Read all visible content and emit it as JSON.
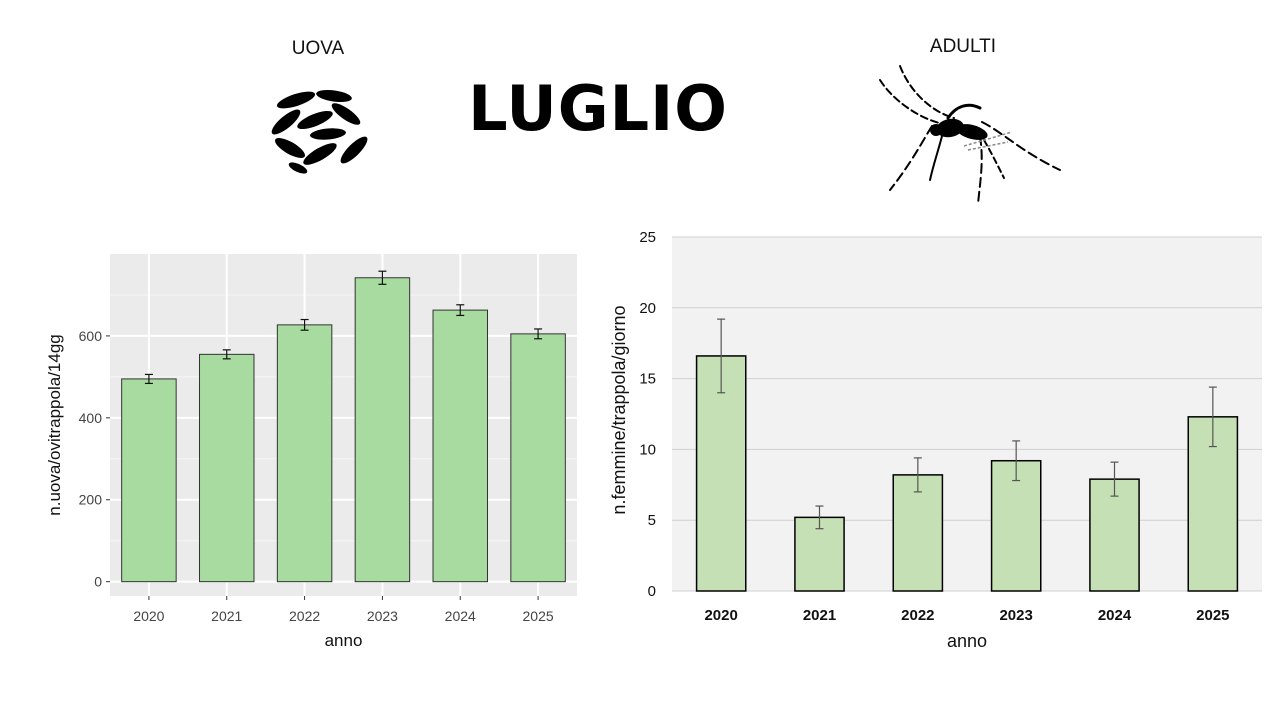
{
  "header": {
    "title": "LUGLIO",
    "eggs_label": "UOVA",
    "adults_label": "ADULTI"
  },
  "icons": {
    "eggs": "mosquito-eggs-icon",
    "adult": "mosquito-icon"
  },
  "colors": {
    "left_bar_fill": "#a8dba0",
    "right_bar_fill": "#c5e0b4",
    "left_panel_bg": "#ebebeb",
    "right_panel_bg": "#f2f2f2"
  },
  "chart_data": [
    {
      "type": "bar",
      "categories": [
        "2020",
        "2021",
        "2022",
        "2023",
        "2024",
        "2025"
      ],
      "values": [
        495,
        555,
        627,
        742,
        663,
        605
      ],
      "error": [
        11,
        11,
        13,
        16,
        13,
        12
      ],
      "xlabel": "anno",
      "ylabel": "n.uova/ovitrappola/14gg",
      "ylim": [
        -35,
        800
      ],
      "yticks": [
        0,
        200,
        400,
        600
      ],
      "grid": true
    },
    {
      "type": "bar",
      "categories": [
        "2020",
        "2021",
        "2022",
        "2023",
        "2024",
        "2025"
      ],
      "values": [
        16.6,
        5.2,
        8.2,
        9.2,
        7.9,
        12.3
      ],
      "error": [
        2.6,
        0.8,
        1.2,
        1.4,
        1.2,
        2.1
      ],
      "xlabel": "anno",
      "ylabel": "n.femmine/trappola/giorno",
      "ylim": [
        0,
        25
      ],
      "yticks": [
        0,
        5,
        10,
        15,
        20,
        25
      ],
      "grid": true
    }
  ]
}
